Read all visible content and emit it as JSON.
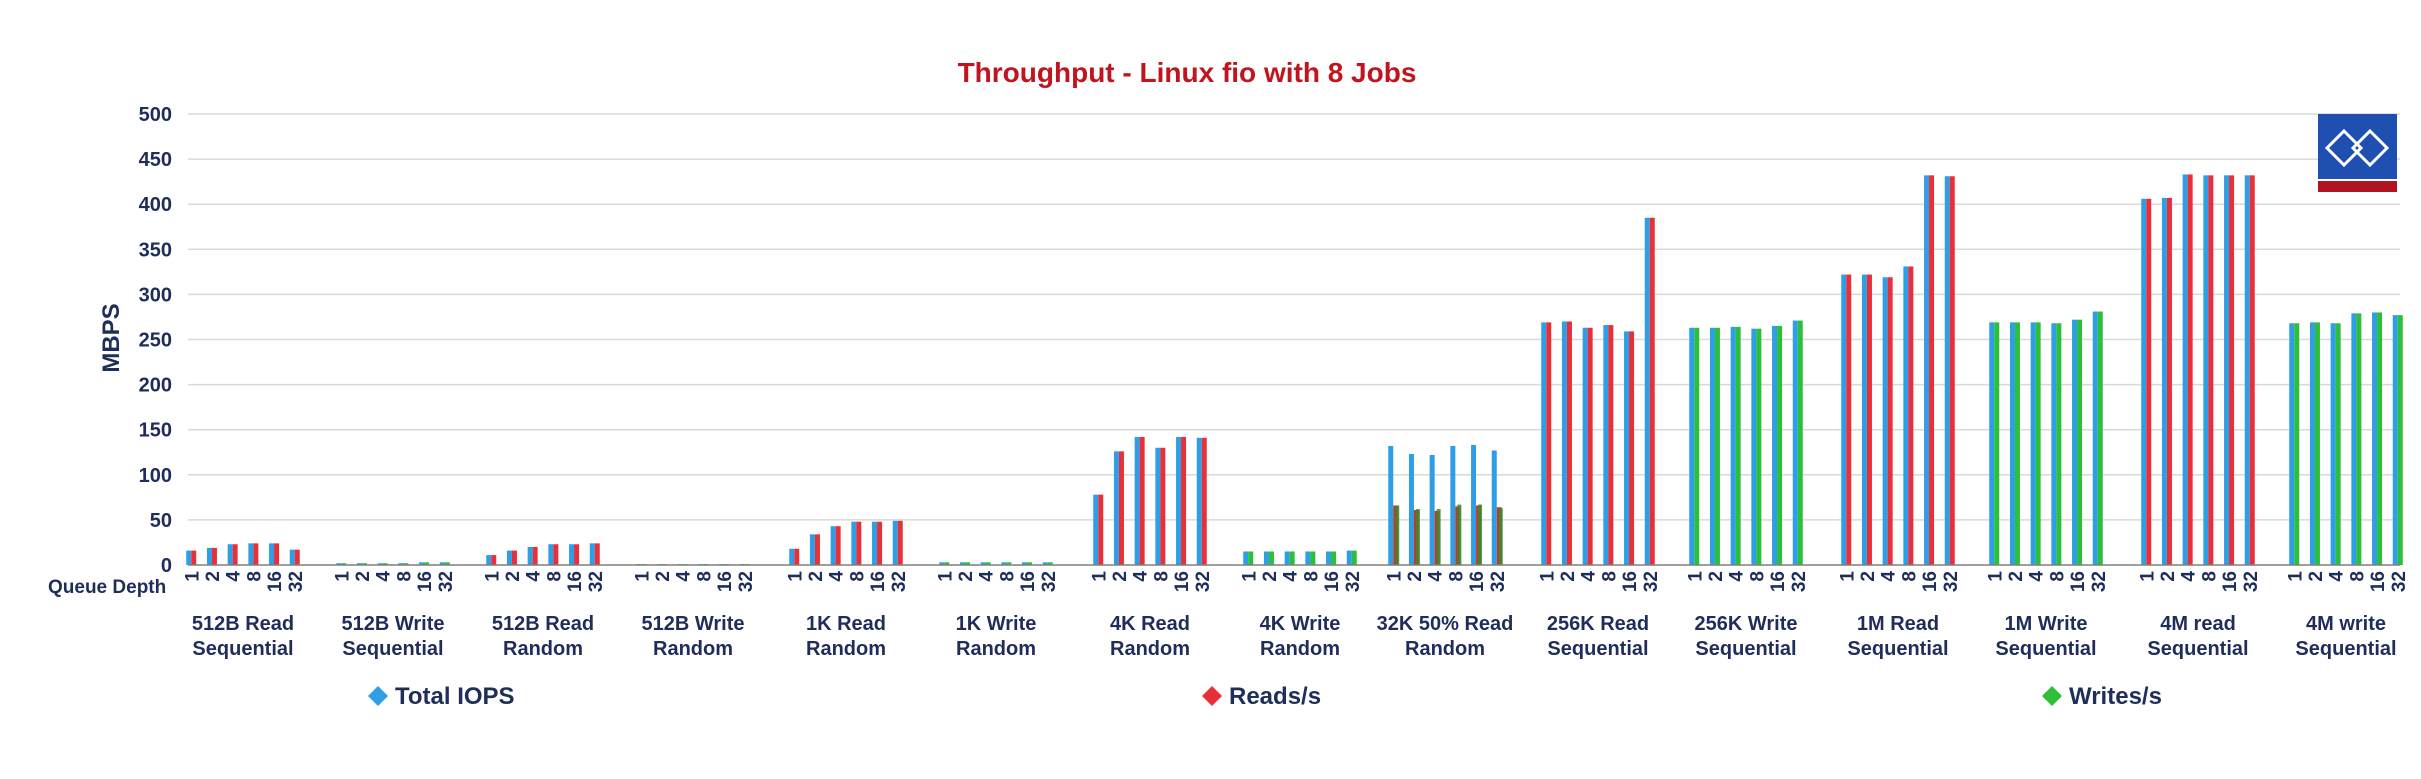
{
  "chart_data": {
    "type": "bar",
    "title": "Throughput - Linux fio with 8 Jobs",
    "ylabel": "MBPS",
    "xlabel": "Queue Depth",
    "ylim": [
      0,
      500
    ],
    "yticks": [
      0,
      50,
      100,
      150,
      200,
      250,
      300,
      350,
      400,
      450,
      500
    ],
    "grid": true,
    "legend_position": "bottom",
    "queue_depths": [
      "1",
      "2",
      "4",
      "8",
      "16",
      "32"
    ],
    "series": [
      {
        "name": "Total IOPS",
        "color": "#2e9fe6"
      },
      {
        "name": "Reads/s",
        "color": "#e8303a"
      },
      {
        "name": "Writes/s",
        "color": "#2dbf3a"
      }
    ],
    "colors": {
      "title": "#c0141e",
      "axis_text": "#1f2d5a",
      "grid": "#d9d9d9",
      "mixed_read": "#c0392b",
      "mixed_write": "#3a8a2e",
      "logo_blue": "#1f4fb0",
      "logo_red": "#b01420"
    },
    "groups": [
      {
        "label": [
          "512B Read",
          "Sequential"
        ],
        "mode": "read",
        "values": [
          16,
          19,
          23,
          24,
          24,
          17
        ]
      },
      {
        "label": [
          "512B Write",
          "Sequential"
        ],
        "mode": "write",
        "values": [
          2,
          2,
          2,
          2,
          3,
          3
        ]
      },
      {
        "label": [
          "512B Read",
          "Random"
        ],
        "mode": "read",
        "values": [
          11,
          16,
          20,
          23,
          23,
          24
        ]
      },
      {
        "label": [
          "512B Write",
          "Random"
        ],
        "mode": "write",
        "values": [
          1,
          1,
          1,
          1,
          1,
          1
        ]
      },
      {
        "label": [
          "1K Read",
          "Random"
        ],
        "mode": "read",
        "values": [
          18,
          34,
          43,
          48,
          48,
          49
        ]
      },
      {
        "label": [
          "1K Write",
          "Random"
        ],
        "mode": "write",
        "values": [
          3,
          3,
          3,
          3,
          3,
          3
        ]
      },
      {
        "label": [
          "4K Read",
          "Random"
        ],
        "mode": "read",
        "values": [
          78,
          126,
          142,
          130,
          142,
          141
        ]
      },
      {
        "label": [
          "4K Write",
          "Random"
        ],
        "mode": "write",
        "values": [
          15,
          15,
          15,
          15,
          15,
          16
        ]
      },
      {
        "label": [
          "32K 50% Read",
          "Random"
        ],
        "mode": "mixed",
        "values": [
          132,
          123,
          122,
          132,
          133,
          127
        ],
        "reads": [
          66,
          61,
          60,
          65,
          66,
          64
        ],
        "writes": [
          66,
          62,
          62,
          67,
          67,
          63
        ]
      },
      {
        "label": [
          "256K Read",
          "Sequential"
        ],
        "mode": "read",
        "values": [
          269,
          270,
          263,
          266,
          259,
          385
        ]
      },
      {
        "label": [
          "256K Write",
          "Sequential"
        ],
        "mode": "write",
        "values": [
          263,
          263,
          264,
          262,
          265,
          271
        ]
      },
      {
        "label": [
          "1M Read",
          "Sequential"
        ],
        "mode": "read",
        "values": [
          322,
          322,
          319,
          331,
          432,
          431
        ]
      },
      {
        "label": [
          "1M Write",
          "Sequential"
        ],
        "mode": "write",
        "values": [
          269,
          269,
          269,
          268,
          272,
          281
        ]
      },
      {
        "label": [
          "4M read",
          "Sequential"
        ],
        "mode": "read",
        "values": [
          406,
          407,
          433,
          432,
          432,
          432
        ]
      },
      {
        "label": [
          "4M write",
          "Sequential"
        ],
        "mode": "write",
        "values": [
          268,
          269,
          268,
          279,
          280,
          277
        ]
      }
    ]
  }
}
